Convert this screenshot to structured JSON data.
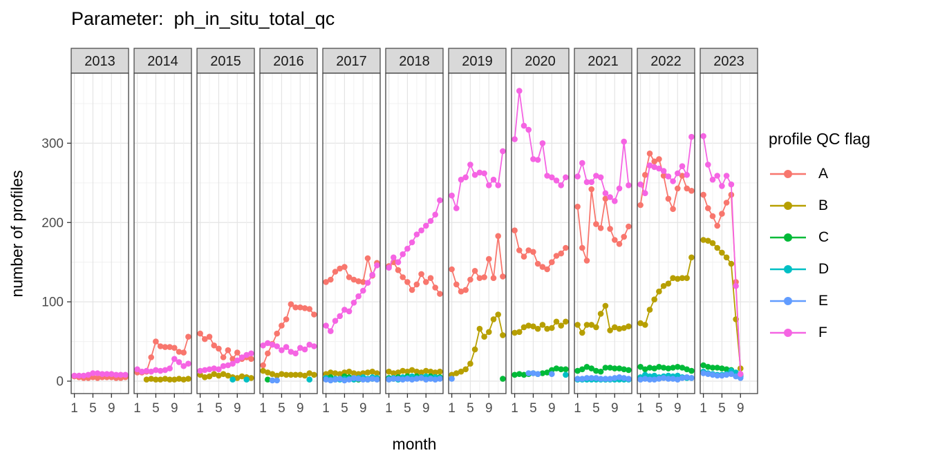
{
  "title": "Parameter:  ph_in_situ_total_qc",
  "chart_data": {
    "type": "line",
    "title": "Parameter:  ph_in_situ_total_qc",
    "xlabel": "month",
    "ylabel": "number of profiles",
    "legend_title": "profile QC flag",
    "legend_position": "right",
    "grid": true,
    "x_ticks": [
      1,
      5,
      9
    ],
    "y_ticks": [
      0,
      100,
      200,
      300
    ],
    "xlim": [
      0.5,
      12.5
    ],
    "ylim": [
      -16,
      388
    ],
    "series": [
      {
        "name": "A",
        "color": "#F8766D"
      },
      {
        "name": "B",
        "color": "#B79F00"
      },
      {
        "name": "C",
        "color": "#00BA38"
      },
      {
        "name": "D",
        "color": "#00BFC4"
      },
      {
        "name": "E",
        "color": "#619CFF"
      },
      {
        "name": "F",
        "color": "#F564E3"
      }
    ],
    "facets": [
      {
        "year": "2013",
        "series": {
          "A": [
            6,
            5,
            4,
            4,
            5,
            4,
            5,
            5,
            5,
            4,
            4,
            5
          ],
          "F": [
            7,
            7,
            7,
            8,
            10,
            10,
            9,
            9,
            9,
            8,
            8,
            8
          ]
        }
      },
      {
        "year": "2014",
        "series": {
          "A": [
            11,
            11,
            12,
            30,
            50,
            44,
            43,
            43,
            42,
            37,
            36,
            56
          ],
          "B": [
            null,
            null,
            2,
            3,
            2,
            2,
            3,
            2,
            2,
            3,
            2,
            3
          ],
          "F": [
            15,
            12,
            13,
            12,
            14,
            13,
            14,
            16,
            28,
            24,
            19,
            22
          ]
        }
      },
      {
        "year": "2015",
        "series": {
          "A": [
            60,
            53,
            56,
            45,
            41,
            30,
            39,
            28,
            36,
            28,
            30,
            28
          ],
          "B": [
            8,
            5,
            6,
            9,
            7,
            9,
            7,
            5,
            4,
            6,
            5,
            4
          ],
          "D": [
            null,
            null,
            null,
            null,
            null,
            null,
            null,
            2,
            null,
            null,
            2,
            null
          ],
          "F": [
            13,
            14,
            15,
            16,
            15,
            19,
            20,
            22,
            26,
            30,
            33,
            35
          ]
        }
      },
      {
        "year": "2016",
        "series": {
          "A": [
            20,
            35,
            47,
            60,
            70,
            78,
            97,
            93,
            93,
            92,
            91,
            84
          ],
          "B": [
            13,
            11,
            9,
            7,
            9,
            8,
            8,
            8,
            8,
            7,
            10,
            8
          ],
          "C": [
            null,
            2,
            null,
            null,
            null,
            null,
            null,
            null,
            null,
            null,
            null,
            null
          ],
          "D": [
            null,
            null,
            null,
            null,
            null,
            null,
            null,
            null,
            null,
            null,
            2,
            null
          ],
          "E": [
            null,
            null,
            1,
            1,
            null,
            null,
            null,
            null,
            null,
            null,
            null,
            null
          ],
          "F": [
            45,
            48,
            46,
            44,
            39,
            43,
            37,
            35,
            42,
            40,
            46,
            44
          ]
        }
      },
      {
        "year": "2017",
        "series": {
          "A": [
            125,
            128,
            138,
            142,
            144,
            131,
            128,
            126,
            125,
            155,
            133,
            149
          ],
          "B": [
            9,
            11,
            10,
            9,
            11,
            12,
            10,
            9,
            10,
            11,
            12,
            10
          ],
          "C": [
            3,
            5,
            2,
            3,
            6,
            5,
            3,
            2,
            3,
            2,
            3,
            3
          ],
          "D": [
            4,
            2,
            3,
            2,
            3,
            3,
            2,
            4,
            5,
            3,
            5,
            4
          ],
          "E": [
            2,
            1,
            2,
            3,
            1,
            2,
            4,
            3,
            2,
            2,
            3,
            2
          ],
          "F": [
            70,
            63,
            76,
            82,
            90,
            88,
            99,
            107,
            114,
            124,
            134,
            146
          ]
        }
      },
      {
        "year": "2018",
        "series": {
          "A": [
            145,
            150,
            140,
            131,
            125,
            115,
            122,
            135,
            125,
            130,
            118,
            110
          ],
          "B": [
            12,
            10,
            11,
            13,
            12,
            14,
            12,
            11,
            13,
            12,
            11,
            12
          ],
          "C": [
            4,
            3,
            5,
            4,
            6,
            5,
            6,
            5,
            4,
            6,
            5,
            5
          ],
          "D": [
            3,
            4,
            2,
            5,
            4,
            6,
            4,
            5,
            6,
            4,
            5,
            4
          ],
          "E": [
            2,
            3,
            3,
            2,
            3,
            2,
            3,
            4,
            2,
            3,
            2,
            3
          ],
          "F": [
            143,
            156,
            150,
            160,
            167,
            175,
            185,
            190,
            196,
            202,
            210,
            228
          ]
        }
      },
      {
        "year": "2019",
        "series": {
          "A": [
            141,
            122,
            113,
            115,
            128,
            139,
            130,
            131,
            154,
            130,
            183,
            132
          ],
          "B": [
            8,
            10,
            12,
            15,
            22,
            40,
            66,
            56,
            62,
            78,
            84,
            58
          ],
          "C": [
            null,
            null,
            null,
            null,
            null,
            null,
            null,
            null,
            null,
            null,
            null,
            3
          ],
          "E": [
            3,
            null,
            null,
            null,
            null,
            null,
            null,
            null,
            null,
            null,
            null,
            null
          ],
          "F": [
            234,
            218,
            254,
            257,
            273,
            260,
            263,
            262,
            247,
            254,
            247,
            290
          ]
        }
      },
      {
        "year": "2020",
        "series": {
          "A": [
            190,
            165,
            157,
            165,
            163,
            148,
            144,
            141,
            150,
            158,
            161,
            168
          ],
          "B": [
            61,
            62,
            68,
            70,
            69,
            66,
            71,
            66,
            67,
            75,
            70,
            75
          ],
          "C": [
            8,
            9,
            8,
            9,
            10,
            9,
            10,
            11,
            14,
            16,
            15,
            15
          ],
          "D": [
            null,
            null,
            null,
            null,
            null,
            null,
            null,
            null,
            null,
            null,
            null,
            8
          ],
          "E": [
            null,
            null,
            null,
            10,
            10,
            9,
            null,
            null,
            9,
            null,
            null,
            null
          ],
          "F": [
            305,
            366,
            322,
            317,
            280,
            279,
            300,
            259,
            257,
            253,
            247,
            257
          ]
        }
      },
      {
        "year": "2021",
        "series": {
          "A": [
            220,
            168,
            152,
            242,
            198,
            193,
            230,
            192,
            178,
            173,
            182,
            195
          ],
          "B": [
            71,
            61,
            71,
            71,
            68,
            85,
            95,
            64,
            68,
            66,
            67,
            69
          ],
          "C": [
            13,
            15,
            18,
            16,
            13,
            12,
            17,
            17,
            16,
            16,
            15,
            14
          ],
          "D": [
            2,
            2,
            2,
            2,
            2,
            2,
            2,
            2,
            2,
            2,
            2,
            2
          ],
          "E": [
            3,
            3,
            4,
            4,
            4,
            3,
            3,
            3,
            4,
            5,
            4,
            3
          ],
          "F": [
            258,
            275,
            251,
            251,
            259,
            257,
            237,
            232,
            227,
            243,
            302,
            247
          ]
        }
      },
      {
        "year": "2022",
        "series": {
          "A": [
            222,
            260,
            287,
            277,
            280,
            259,
            230,
            217,
            243,
            259,
            243,
            240
          ],
          "B": [
            73,
            71,
            90,
            103,
            113,
            120,
            123,
            130,
            129,
            130,
            130,
            156
          ],
          "C": [
            18,
            15,
            17,
            16,
            18,
            17,
            16,
            17,
            18,
            17,
            15,
            13
          ],
          "D": [
            5,
            8,
            6,
            7,
            5,
            6,
            7,
            6,
            7,
            5,
            4,
            4
          ],
          "E": [
            2,
            3,
            2,
            2,
            3,
            4,
            3,
            3,
            2,
            4,
            5,
            4
          ],
          "F": [
            248,
            237,
            272,
            270,
            268,
            265,
            258,
            252,
            262,
            271,
            260,
            308
          ]
        }
      },
      {
        "year": "2023",
        "series": {
          "A": [
            235,
            218,
            208,
            196,
            211,
            225,
            235,
            125,
            8,
            null,
            null,
            null
          ],
          "B": [
            178,
            177,
            174,
            168,
            162,
            156,
            148,
            78,
            16,
            null,
            null,
            null
          ],
          "C": [
            20,
            18,
            17,
            17,
            16,
            15,
            14,
            10,
            8,
            null,
            null,
            null
          ],
          "D": [
            12,
            10,
            9,
            8,
            8,
            9,
            13,
            11,
            6,
            null,
            null,
            null
          ],
          "E": [
            10,
            9,
            8,
            7,
            7,
            8,
            9,
            6,
            4,
            null,
            null,
            null
          ],
          "F": [
            309,
            273,
            254,
            259,
            246,
            259,
            248,
            120,
            9,
            null,
            null,
            null
          ]
        }
      }
    ],
    "style": {
      "strip_fill": "#D9D9D9",
      "strip_border": "#4D4D4D",
      "panel_border": "#404040",
      "grid_major": "#E4E4E4",
      "grid_minor": "#F0F0F0",
      "tick_text": "#4D4D4D"
    }
  }
}
